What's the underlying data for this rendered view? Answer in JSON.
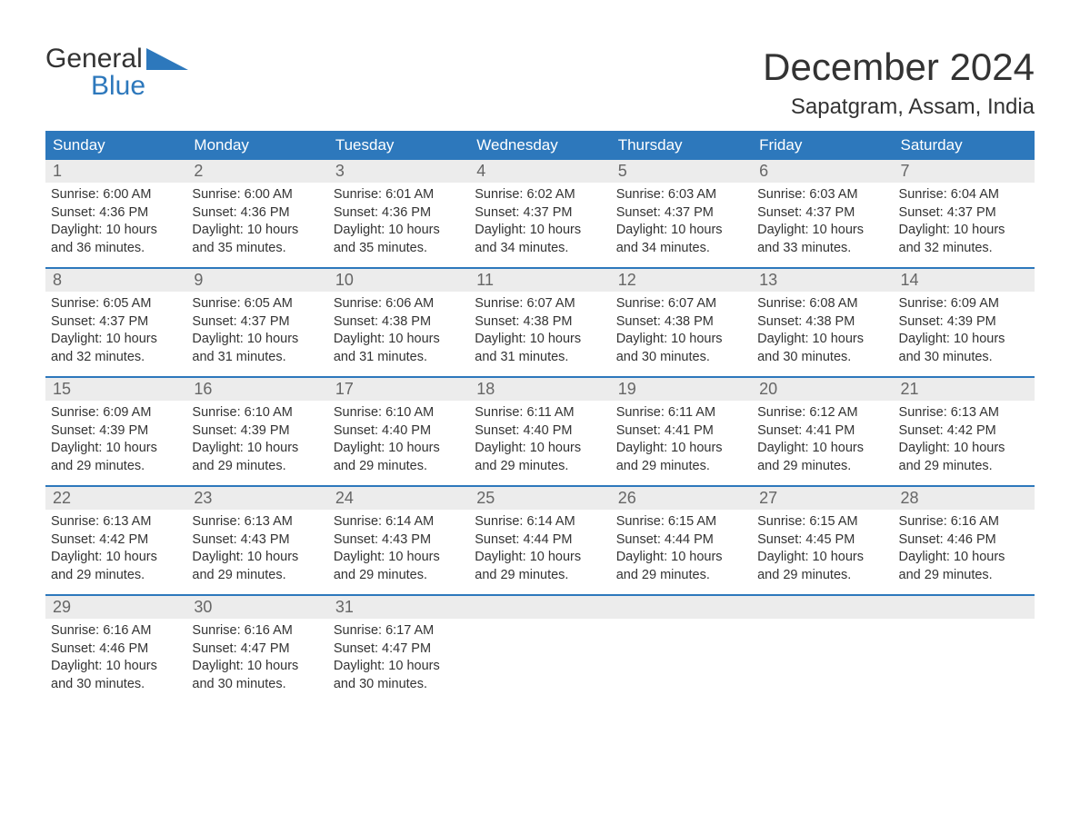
{
  "logo": {
    "text1": "General",
    "text2": "Blue",
    "tri_color": "#2d78bc"
  },
  "title": "December 2024",
  "location": "Sapatgram, Assam, India",
  "colors": {
    "header_bg": "#2d78bc",
    "header_text": "#ffffff",
    "daynum_bg": "#ececec",
    "daynum_text": "#666666",
    "body_text": "#333333",
    "rule": "#2d78bc",
    "page_bg": "#ffffff"
  },
  "day_names": [
    "Sunday",
    "Monday",
    "Tuesday",
    "Wednesday",
    "Thursday",
    "Friday",
    "Saturday"
  ],
  "weeks": [
    [
      {
        "n": "1",
        "sr": "Sunrise: 6:00 AM",
        "ss": "Sunset: 4:36 PM",
        "dl1": "Daylight: 10 hours",
        "dl2": "and 36 minutes."
      },
      {
        "n": "2",
        "sr": "Sunrise: 6:00 AM",
        "ss": "Sunset: 4:36 PM",
        "dl1": "Daylight: 10 hours",
        "dl2": "and 35 minutes."
      },
      {
        "n": "3",
        "sr": "Sunrise: 6:01 AM",
        "ss": "Sunset: 4:36 PM",
        "dl1": "Daylight: 10 hours",
        "dl2": "and 35 minutes."
      },
      {
        "n": "4",
        "sr": "Sunrise: 6:02 AM",
        "ss": "Sunset: 4:37 PM",
        "dl1": "Daylight: 10 hours",
        "dl2": "and 34 minutes."
      },
      {
        "n": "5",
        "sr": "Sunrise: 6:03 AM",
        "ss": "Sunset: 4:37 PM",
        "dl1": "Daylight: 10 hours",
        "dl2": "and 34 minutes."
      },
      {
        "n": "6",
        "sr": "Sunrise: 6:03 AM",
        "ss": "Sunset: 4:37 PM",
        "dl1": "Daylight: 10 hours",
        "dl2": "and 33 minutes."
      },
      {
        "n": "7",
        "sr": "Sunrise: 6:04 AM",
        "ss": "Sunset: 4:37 PM",
        "dl1": "Daylight: 10 hours",
        "dl2": "and 32 minutes."
      }
    ],
    [
      {
        "n": "8",
        "sr": "Sunrise: 6:05 AM",
        "ss": "Sunset: 4:37 PM",
        "dl1": "Daylight: 10 hours",
        "dl2": "and 32 minutes."
      },
      {
        "n": "9",
        "sr": "Sunrise: 6:05 AM",
        "ss": "Sunset: 4:37 PM",
        "dl1": "Daylight: 10 hours",
        "dl2": "and 31 minutes."
      },
      {
        "n": "10",
        "sr": "Sunrise: 6:06 AM",
        "ss": "Sunset: 4:38 PM",
        "dl1": "Daylight: 10 hours",
        "dl2": "and 31 minutes."
      },
      {
        "n": "11",
        "sr": "Sunrise: 6:07 AM",
        "ss": "Sunset: 4:38 PM",
        "dl1": "Daylight: 10 hours",
        "dl2": "and 31 minutes."
      },
      {
        "n": "12",
        "sr": "Sunrise: 6:07 AM",
        "ss": "Sunset: 4:38 PM",
        "dl1": "Daylight: 10 hours",
        "dl2": "and 30 minutes."
      },
      {
        "n": "13",
        "sr": "Sunrise: 6:08 AM",
        "ss": "Sunset: 4:38 PM",
        "dl1": "Daylight: 10 hours",
        "dl2": "and 30 minutes."
      },
      {
        "n": "14",
        "sr": "Sunrise: 6:09 AM",
        "ss": "Sunset: 4:39 PM",
        "dl1": "Daylight: 10 hours",
        "dl2": "and 30 minutes."
      }
    ],
    [
      {
        "n": "15",
        "sr": "Sunrise: 6:09 AM",
        "ss": "Sunset: 4:39 PM",
        "dl1": "Daylight: 10 hours",
        "dl2": "and 29 minutes."
      },
      {
        "n": "16",
        "sr": "Sunrise: 6:10 AM",
        "ss": "Sunset: 4:39 PM",
        "dl1": "Daylight: 10 hours",
        "dl2": "and 29 minutes."
      },
      {
        "n": "17",
        "sr": "Sunrise: 6:10 AM",
        "ss": "Sunset: 4:40 PM",
        "dl1": "Daylight: 10 hours",
        "dl2": "and 29 minutes."
      },
      {
        "n": "18",
        "sr": "Sunrise: 6:11 AM",
        "ss": "Sunset: 4:40 PM",
        "dl1": "Daylight: 10 hours",
        "dl2": "and 29 minutes."
      },
      {
        "n": "19",
        "sr": "Sunrise: 6:11 AM",
        "ss": "Sunset: 4:41 PM",
        "dl1": "Daylight: 10 hours",
        "dl2": "and 29 minutes."
      },
      {
        "n": "20",
        "sr": "Sunrise: 6:12 AM",
        "ss": "Sunset: 4:41 PM",
        "dl1": "Daylight: 10 hours",
        "dl2": "and 29 minutes."
      },
      {
        "n": "21",
        "sr": "Sunrise: 6:13 AM",
        "ss": "Sunset: 4:42 PM",
        "dl1": "Daylight: 10 hours",
        "dl2": "and 29 minutes."
      }
    ],
    [
      {
        "n": "22",
        "sr": "Sunrise: 6:13 AM",
        "ss": "Sunset: 4:42 PM",
        "dl1": "Daylight: 10 hours",
        "dl2": "and 29 minutes."
      },
      {
        "n": "23",
        "sr": "Sunrise: 6:13 AM",
        "ss": "Sunset: 4:43 PM",
        "dl1": "Daylight: 10 hours",
        "dl2": "and 29 minutes."
      },
      {
        "n": "24",
        "sr": "Sunrise: 6:14 AM",
        "ss": "Sunset: 4:43 PM",
        "dl1": "Daylight: 10 hours",
        "dl2": "and 29 minutes."
      },
      {
        "n": "25",
        "sr": "Sunrise: 6:14 AM",
        "ss": "Sunset: 4:44 PM",
        "dl1": "Daylight: 10 hours",
        "dl2": "and 29 minutes."
      },
      {
        "n": "26",
        "sr": "Sunrise: 6:15 AM",
        "ss": "Sunset: 4:44 PM",
        "dl1": "Daylight: 10 hours",
        "dl2": "and 29 minutes."
      },
      {
        "n": "27",
        "sr": "Sunrise: 6:15 AM",
        "ss": "Sunset: 4:45 PM",
        "dl1": "Daylight: 10 hours",
        "dl2": "and 29 minutes."
      },
      {
        "n": "28",
        "sr": "Sunrise: 6:16 AM",
        "ss": "Sunset: 4:46 PM",
        "dl1": "Daylight: 10 hours",
        "dl2": "and 29 minutes."
      }
    ],
    [
      {
        "n": "29",
        "sr": "Sunrise: 6:16 AM",
        "ss": "Sunset: 4:46 PM",
        "dl1": "Daylight: 10 hours",
        "dl2": "and 30 minutes."
      },
      {
        "n": "30",
        "sr": "Sunrise: 6:16 AM",
        "ss": "Sunset: 4:47 PM",
        "dl1": "Daylight: 10 hours",
        "dl2": "and 30 minutes."
      },
      {
        "n": "31",
        "sr": "Sunrise: 6:17 AM",
        "ss": "Sunset: 4:47 PM",
        "dl1": "Daylight: 10 hours",
        "dl2": "and 30 minutes."
      },
      {
        "empty": true
      },
      {
        "empty": true
      },
      {
        "empty": true
      },
      {
        "empty": true
      }
    ]
  ]
}
